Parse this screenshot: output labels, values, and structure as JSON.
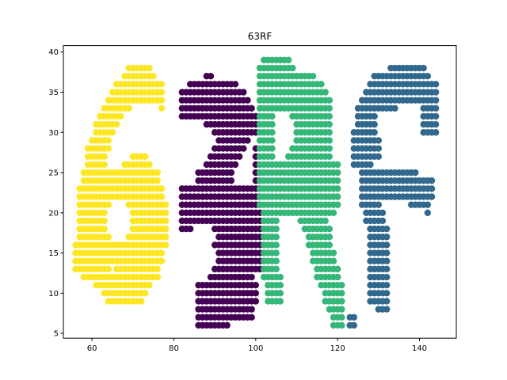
{
  "chart_data": {
    "type": "scatter",
    "title": "63RF",
    "xlabel": "",
    "ylabel": "",
    "xlim": [
      53,
      149
    ],
    "ylim": [
      4.4,
      40.8
    ],
    "xticks": [
      60,
      80,
      100,
      120,
      140
    ],
    "yticks": [
      5,
      10,
      15,
      20,
      25,
      30,
      35,
      40
    ],
    "grid": false,
    "legend": "none",
    "colors": {
      "six": "#fde725",
      "three": "#440154",
      "R": "#35b779",
      "F": "#31688e"
    },
    "series": [
      {
        "key": "six",
        "rows": [
          [
            38,
            69,
            74
          ],
          [
            37,
            68,
            75
          ],
          [
            36,
            66,
            77
          ],
          [
            35,
            65,
            77
          ],
          [
            34,
            64,
            77
          ],
          [
            33,
            63,
            69
          ],
          [
            33,
            77,
            77
          ],
          [
            32,
            62,
            67
          ],
          [
            31,
            61,
            66
          ],
          [
            30,
            61,
            65
          ],
          [
            29,
            60,
            64
          ],
          [
            28,
            59,
            64
          ],
          [
            27,
            59,
            63
          ],
          [
            27,
            70,
            73
          ],
          [
            26,
            59,
            63
          ],
          [
            26,
            68,
            74
          ],
          [
            25,
            58,
            76
          ],
          [
            24,
            58,
            76
          ],
          [
            23,
            57,
            77
          ],
          [
            22,
            57,
            77
          ],
          [
            21,
            57,
            64
          ],
          [
            21,
            69,
            78
          ],
          [
            20,
            57,
            63
          ],
          [
            20,
            70,
            78
          ],
          [
            19,
            57,
            63
          ],
          [
            19,
            70,
            78
          ],
          [
            18,
            57,
            63
          ],
          [
            18,
            70,
            78
          ],
          [
            17,
            57,
            64
          ],
          [
            17,
            69,
            78
          ],
          [
            16,
            56,
            78
          ],
          [
            15,
            56,
            77
          ],
          [
            14,
            56,
            77
          ],
          [
            13,
            56,
            64
          ],
          [
            13,
            66,
            76
          ],
          [
            12,
            58,
            76
          ],
          [
            11,
            61,
            74
          ],
          [
            10,
            63,
            73
          ],
          [
            9,
            64,
            72
          ]
        ]
      },
      {
        "key": "three",
        "rows": [
          [
            37,
            88,
            89
          ],
          [
            36,
            84,
            95
          ],
          [
            35,
            82,
            97
          ],
          [
            34,
            82,
            98
          ],
          [
            33,
            82,
            99
          ],
          [
            32,
            82,
            99
          ],
          [
            32,
            100,
            100
          ],
          [
            31,
            88,
            99
          ],
          [
            31,
            100,
            100
          ],
          [
            30,
            90,
            99
          ],
          [
            30,
            100,
            100
          ],
          [
            29,
            91,
            98
          ],
          [
            28,
            90,
            97
          ],
          [
            28,
            100,
            100
          ],
          [
            27,
            89,
            96
          ],
          [
            27,
            100,
            100
          ],
          [
            26,
            88,
            95
          ],
          [
            26,
            100,
            100
          ],
          [
            25,
            86,
            94
          ],
          [
            25,
            100,
            101
          ],
          [
            24,
            86,
            94
          ],
          [
            24,
            100,
            101
          ],
          [
            23,
            82,
            101
          ],
          [
            22,
            82,
            101
          ],
          [
            21,
            82,
            101
          ],
          [
            20,
            82,
            101
          ],
          [
            19,
            82,
            101
          ],
          [
            18,
            82,
            84
          ],
          [
            18,
            90,
            101
          ],
          [
            17,
            91,
            101
          ],
          [
            16,
            90,
            101
          ],
          [
            15,
            91,
            101
          ],
          [
            14,
            91,
            101
          ],
          [
            13,
            90,
            101
          ],
          [
            12,
            89,
            99
          ],
          [
            11,
            86,
            100
          ],
          [
            10,
            86,
            100
          ],
          [
            9,
            86,
            100
          ],
          [
            8,
            86,
            99
          ],
          [
            7,
            86,
            99
          ],
          [
            6,
            86,
            93
          ]
        ]
      },
      {
        "key": "R",
        "rows": [
          [
            39,
            102,
            108
          ],
          [
            38,
            101,
            109
          ],
          [
            37,
            101,
            114
          ],
          [
            36,
            101,
            116
          ],
          [
            35,
            101,
            117
          ],
          [
            34,
            101,
            118
          ],
          [
            33,
            101,
            118
          ],
          [
            32,
            101,
            104
          ],
          [
            32,
            109,
            118
          ],
          [
            31,
            101,
            104
          ],
          [
            31,
            110,
            118
          ],
          [
            30,
            101,
            104
          ],
          [
            30,
            110,
            118
          ],
          [
            29,
            101,
            104
          ],
          [
            29,
            110,
            118
          ],
          [
            28,
            101,
            104
          ],
          [
            28,
            109,
            118
          ],
          [
            27,
            101,
            104
          ],
          [
            27,
            108,
            118
          ],
          [
            26,
            101,
            120
          ],
          [
            25,
            101,
            120
          ],
          [
            24,
            101,
            120
          ],
          [
            23,
            101,
            120
          ],
          [
            22,
            101,
            120
          ],
          [
            21,
            101,
            120
          ],
          [
            20,
            102,
            119
          ],
          [
            19,
            102,
            105
          ],
          [
            19,
            111,
            117
          ],
          [
            18,
            102,
            105
          ],
          [
            18,
            112,
            118
          ],
          [
            17,
            102,
            105
          ],
          [
            17,
            113,
            118
          ],
          [
            16,
            102,
            105
          ],
          [
            16,
            113,
            118
          ],
          [
            15,
            102,
            105
          ],
          [
            15,
            114,
            119
          ],
          [
            14,
            102,
            105
          ],
          [
            14,
            114,
            119
          ],
          [
            13,
            102,
            105
          ],
          [
            13,
            115,
            120
          ],
          [
            12,
            102,
            106
          ],
          [
            12,
            115,
            120
          ],
          [
            11,
            103,
            106
          ],
          [
            11,
            116,
            121
          ],
          [
            10,
            103,
            106
          ],
          [
            10,
            117,
            121
          ],
          [
            9,
            103,
            106
          ],
          [
            9,
            117,
            121
          ],
          [
            8,
            118,
            121
          ],
          [
            7,
            119,
            121
          ],
          [
            6,
            119,
            121
          ]
        ]
      },
      {
        "key": "F",
        "rows": [
          [
            38,
            133,
            141
          ],
          [
            37,
            129,
            142
          ],
          [
            36,
            128,
            144
          ],
          [
            35,
            127,
            144
          ],
          [
            34,
            126,
            144
          ],
          [
            33,
            125,
            134
          ],
          [
            33,
            141,
            144
          ],
          [
            32,
            125,
            129
          ],
          [
            32,
            141,
            144
          ],
          [
            31,
            125,
            129
          ],
          [
            31,
            141,
            144
          ],
          [
            30,
            124,
            129
          ],
          [
            30,
            141,
            144
          ],
          [
            29,
            124,
            130
          ],
          [
            28,
            124,
            130
          ],
          [
            27,
            124,
            130
          ],
          [
            26,
            124,
            128
          ],
          [
            25,
            126,
            139
          ],
          [
            24,
            126,
            143
          ],
          [
            23,
            126,
            143
          ],
          [
            22,
            126,
            143
          ],
          [
            21,
            126,
            130
          ],
          [
            21,
            138,
            142
          ],
          [
            20,
            127,
            131
          ],
          [
            20,
            142,
            142
          ],
          [
            19,
            127,
            131
          ],
          [
            18,
            128,
            132
          ],
          [
            17,
            128,
            132
          ],
          [
            16,
            128,
            132
          ],
          [
            15,
            128,
            132
          ],
          [
            14,
            128,
            132
          ],
          [
            13,
            128,
            132
          ],
          [
            12,
            128,
            132
          ],
          [
            11,
            128,
            132
          ],
          [
            10,
            128,
            132
          ],
          [
            9,
            128,
            132
          ],
          [
            8,
            130,
            132
          ],
          [
            7,
            123,
            124
          ],
          [
            6,
            123,
            124
          ]
        ]
      }
    ]
  }
}
